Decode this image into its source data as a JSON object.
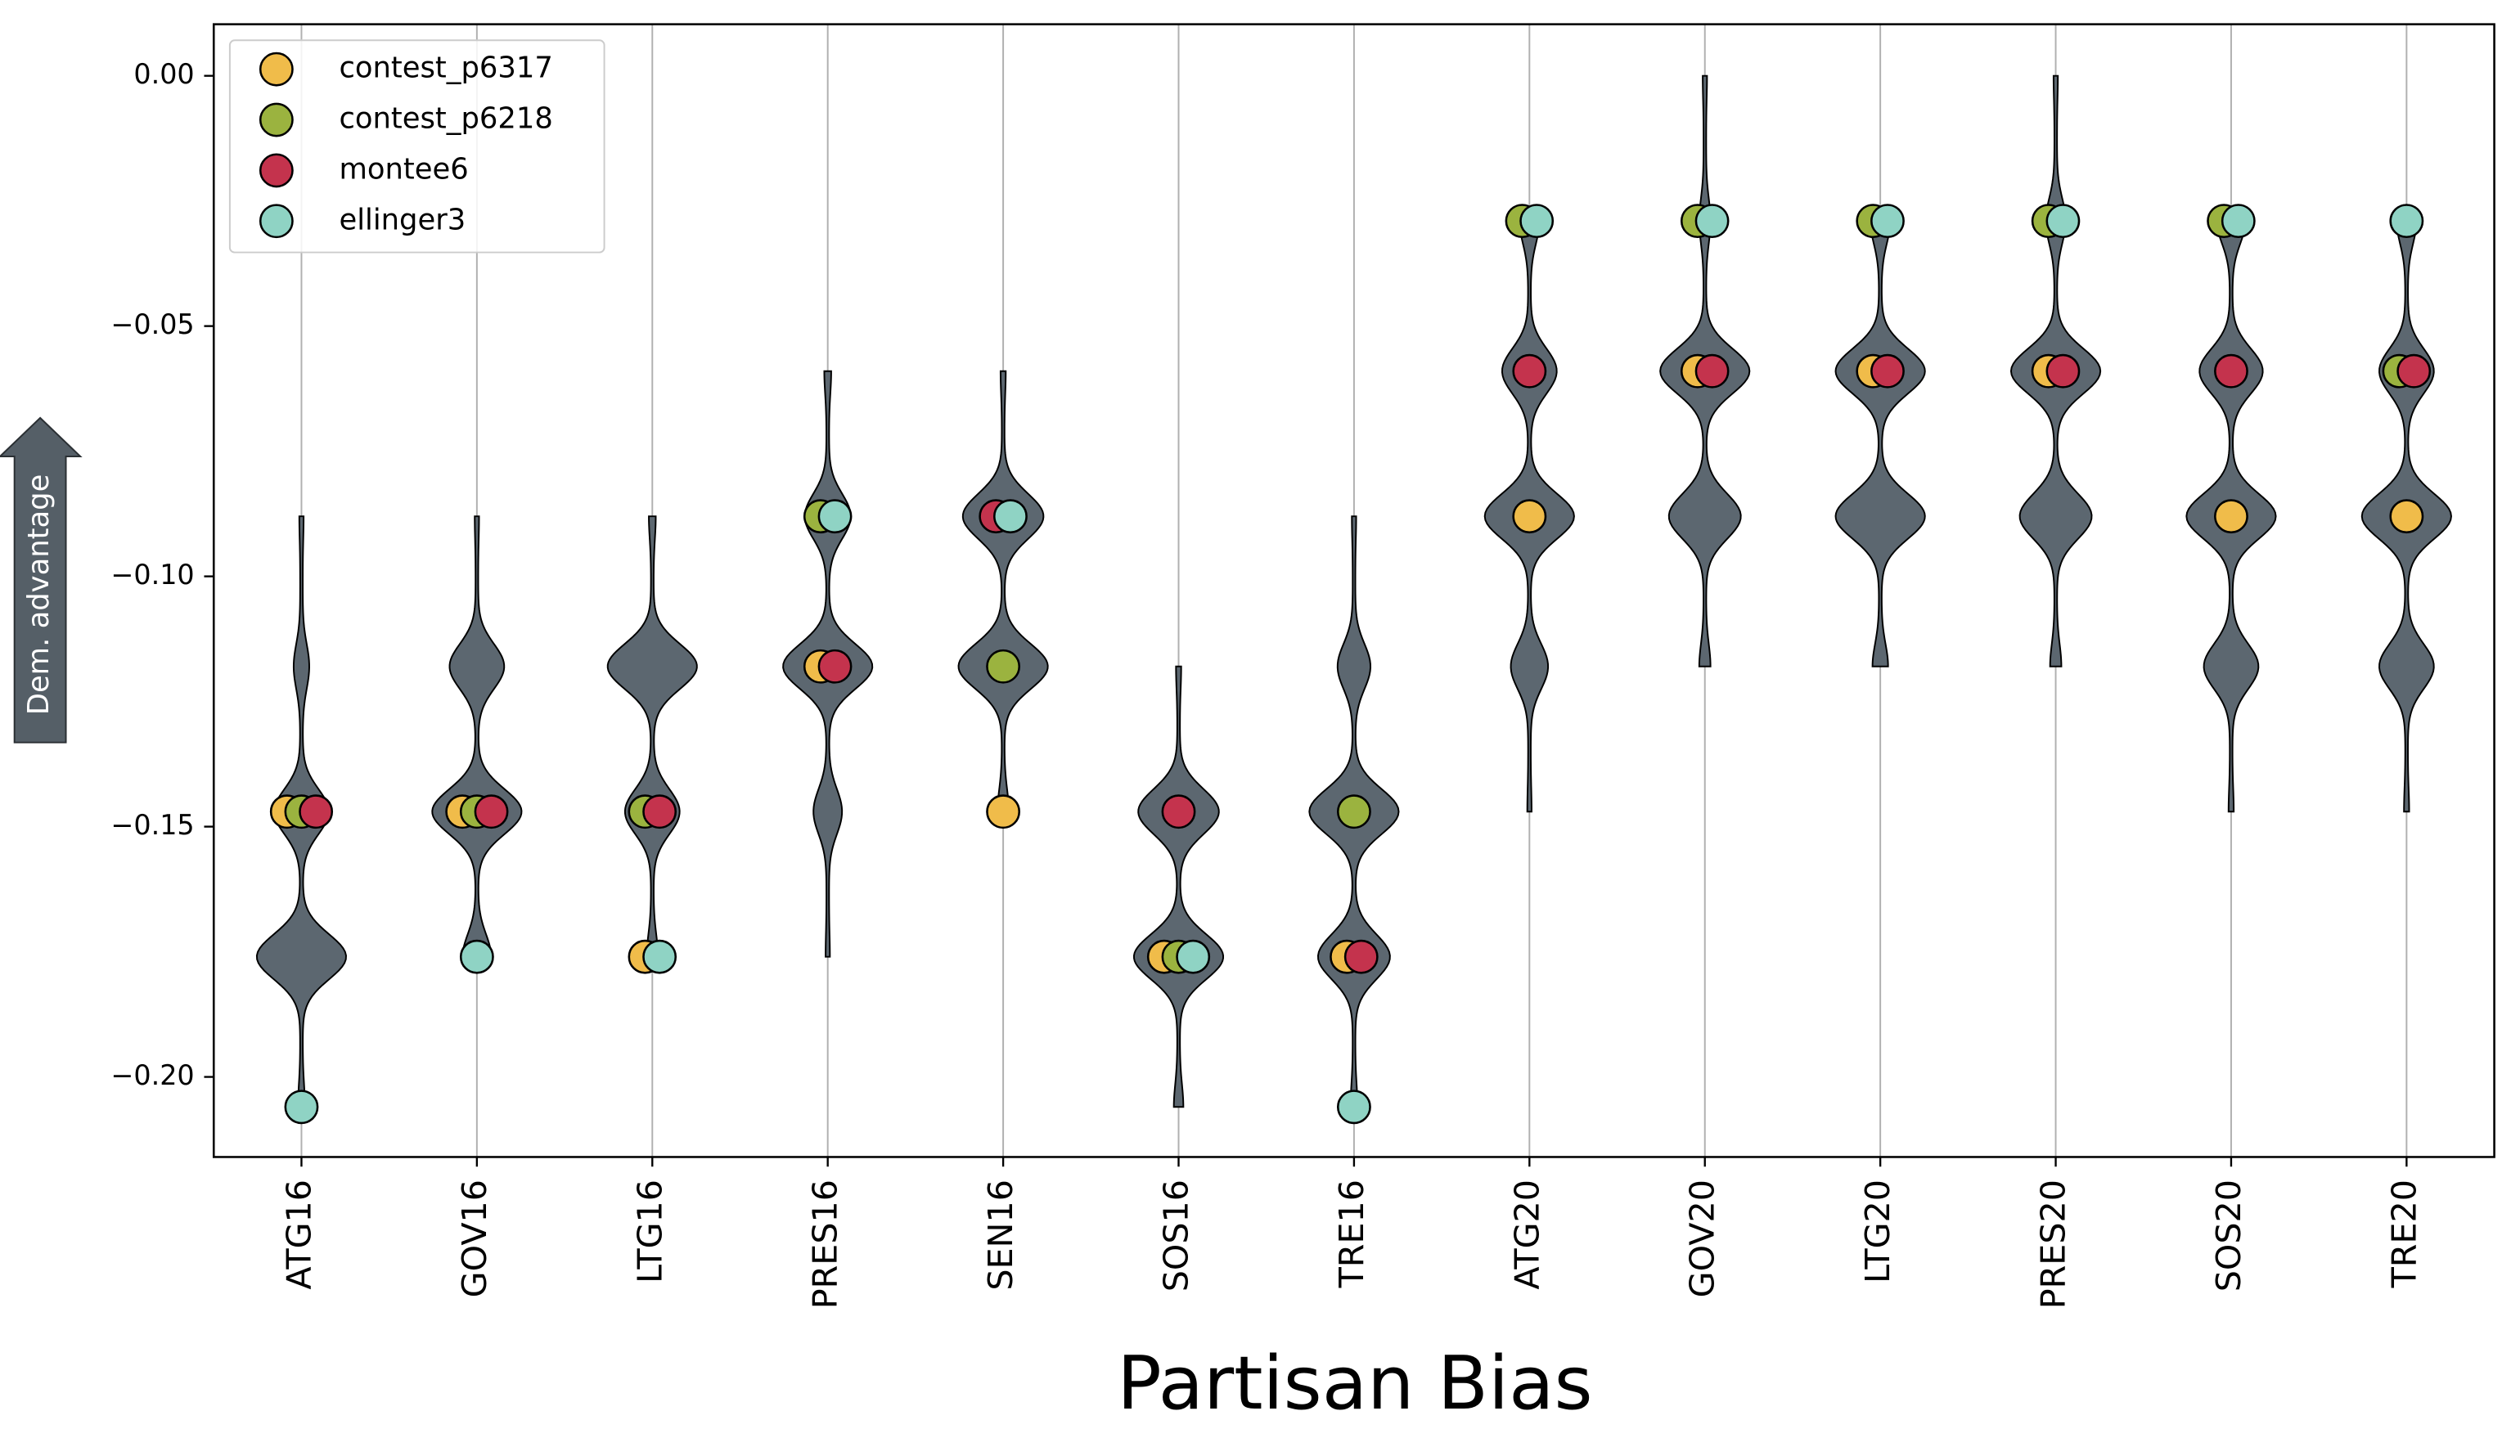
{
  "chart_data": {
    "type": "violin-scatter",
    "xlabel": "Partisan Bias",
    "ylabel": "Dem. advantage",
    "categories": [
      "ATG16",
      "GOV16",
      "LTG16",
      "PRES16",
      "SEN16",
      "SOS16",
      "TRE16",
      "ATG20",
      "GOV20",
      "LTG20",
      "PRES20",
      "SOS20",
      "TRE20"
    ],
    "ylim": [
      -0.216,
      0.0103
    ],
    "yticks": [
      {
        "value": 0,
        "label": "0.00"
      },
      {
        "value": -0.05,
        "label": "−0.05"
      },
      {
        "value": -0.1,
        "label": "−0.10"
      },
      {
        "value": -0.15,
        "label": "−0.15"
      },
      {
        "value": -0.2,
        "label": "−0.20"
      }
    ],
    "grid": true,
    "legend": "upper left",
    "violin_color": "#5c6770",
    "violins": [
      {
        "levels": [
          -0.088,
          -0.118,
          -0.147,
          -0.176,
          -0.206
        ],
        "density": [
          0.02,
          0.15,
          0.6,
          1.0,
          0.05
        ]
      },
      {
        "levels": [
          -0.088,
          -0.118,
          -0.147,
          -0.176
        ],
        "density": [
          0.02,
          0.6,
          1.0,
          0.3
        ]
      },
      {
        "levels": [
          -0.088,
          -0.118,
          -0.147,
          -0.176
        ],
        "density": [
          0.05,
          1.0,
          0.6,
          0.1
        ]
      },
      {
        "levels": [
          -0.059,
          -0.088,
          -0.118,
          -0.147,
          -0.176
        ],
        "density": [
          0.05,
          0.5,
          1.0,
          0.3,
          0.02
        ]
      },
      {
        "levels": [
          -0.059,
          -0.088,
          -0.118,
          -0.147
        ],
        "density": [
          0.03,
          0.9,
          1.0,
          0.1
        ]
      },
      {
        "levels": [
          -0.118,
          -0.147,
          -0.176,
          -0.206
        ],
        "density": [
          0.03,
          0.9,
          1.0,
          0.08
        ]
      },
      {
        "levels": [
          -0.088,
          -0.118,
          -0.147,
          -0.176,
          -0.206
        ],
        "density": [
          0.02,
          0.35,
          1.0,
          0.8,
          0.05
        ]
      },
      {
        "levels": [
          -0.029,
          -0.059,
          -0.088,
          -0.118,
          -0.147
        ],
        "density": [
          0.2,
          0.6,
          1.0,
          0.4,
          0.02
        ]
      },
      {
        "levels": [
          0,
          -0.029,
          -0.059,
          -0.088,
          -0.118
        ],
        "density": [
          0.02,
          0.1,
          1.0,
          0.8,
          0.1
        ]
      },
      {
        "levels": [
          -0.029,
          -0.059,
          -0.088,
          -0.118
        ],
        "density": [
          0.2,
          1.0,
          1.0,
          0.15
        ]
      },
      {
        "levels": [
          0,
          -0.029,
          -0.059,
          -0.088,
          -0.118
        ],
        "density": [
          0.02,
          0.2,
          1.0,
          0.8,
          0.1
        ]
      },
      {
        "levels": [
          -0.029,
          -0.059,
          -0.088,
          -0.118,
          -0.147
        ],
        "density": [
          0.3,
          0.7,
          1.0,
          0.6,
          0.03
        ]
      },
      {
        "levels": [
          -0.029,
          -0.059,
          -0.088,
          -0.118,
          -0.147
        ],
        "density": [
          0.2,
          0.6,
          1.0,
          0.6,
          0.03
        ]
      }
    ],
    "series": [
      {
        "name": "contest_p6317",
        "color": "#f0bc4a",
        "values": [
          -0.147,
          -0.147,
          -0.176,
          -0.118,
          -0.147,
          -0.176,
          -0.176,
          -0.088,
          -0.059,
          -0.059,
          -0.059,
          -0.088,
          -0.088
        ]
      },
      {
        "name": "contest_p6218",
        "color": "#9bb33f",
        "values": [
          -0.147,
          -0.147,
          -0.147,
          -0.088,
          -0.118,
          -0.176,
          -0.147,
          -0.029,
          -0.029,
          -0.029,
          -0.029,
          -0.029,
          -0.059
        ]
      },
      {
        "name": "montee6",
        "color": "#c4334d",
        "values": [
          -0.147,
          -0.147,
          -0.147,
          -0.118,
          -0.088,
          -0.147,
          -0.176,
          -0.059,
          -0.059,
          -0.059,
          -0.059,
          -0.059,
          -0.059
        ]
      },
      {
        "name": "ellinger3",
        "color": "#8fd3c4",
        "values": [
          -0.206,
          -0.176,
          -0.176,
          -0.088,
          -0.088,
          -0.176,
          -0.206,
          -0.029,
          -0.029,
          -0.029,
          -0.029,
          -0.029,
          -0.029
        ]
      }
    ]
  }
}
